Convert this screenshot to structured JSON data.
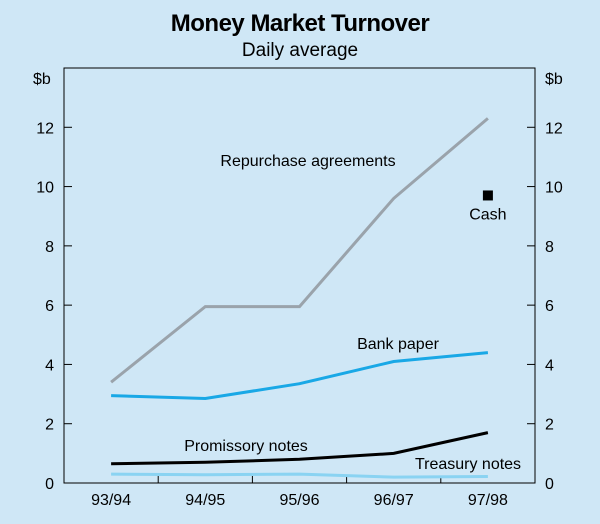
{
  "chart_data": {
    "type": "line",
    "title": "Money Market Turnover",
    "subtitle": "Daily average",
    "ylabel_left": "$b",
    "ylabel_right": "$b",
    "categories": [
      "93/94",
      "94/95",
      "95/96",
      "96/97",
      "97/98"
    ],
    "ylim": [
      0,
      14
    ],
    "yticks": [
      0,
      2,
      4,
      6,
      8,
      10,
      12
    ],
    "grid": false,
    "series": [
      {
        "name": "Repurchase agreements",
        "values": [
          3.4,
          5.95,
          5.95,
          9.6,
          12.3
        ],
        "color": "#9aa3ab"
      },
      {
        "name": "Bank paper",
        "values": [
          2.95,
          2.85,
          3.35,
          4.1,
          4.4
        ],
        "color": "#19a8e6"
      },
      {
        "name": "Promissory notes",
        "values": [
          0.65,
          0.7,
          0.8,
          1.0,
          1.7
        ],
        "color": "#000000"
      },
      {
        "name": "Treasury notes",
        "values": [
          0.3,
          0.28,
          0.3,
          0.2,
          0.22
        ],
        "color": "#8ad3f2"
      },
      {
        "name": "Cash",
        "points": [
          {
            "x": "97/98",
            "y": 9.7
          }
        ],
        "marker": "square",
        "color": "#000000"
      }
    ]
  }
}
